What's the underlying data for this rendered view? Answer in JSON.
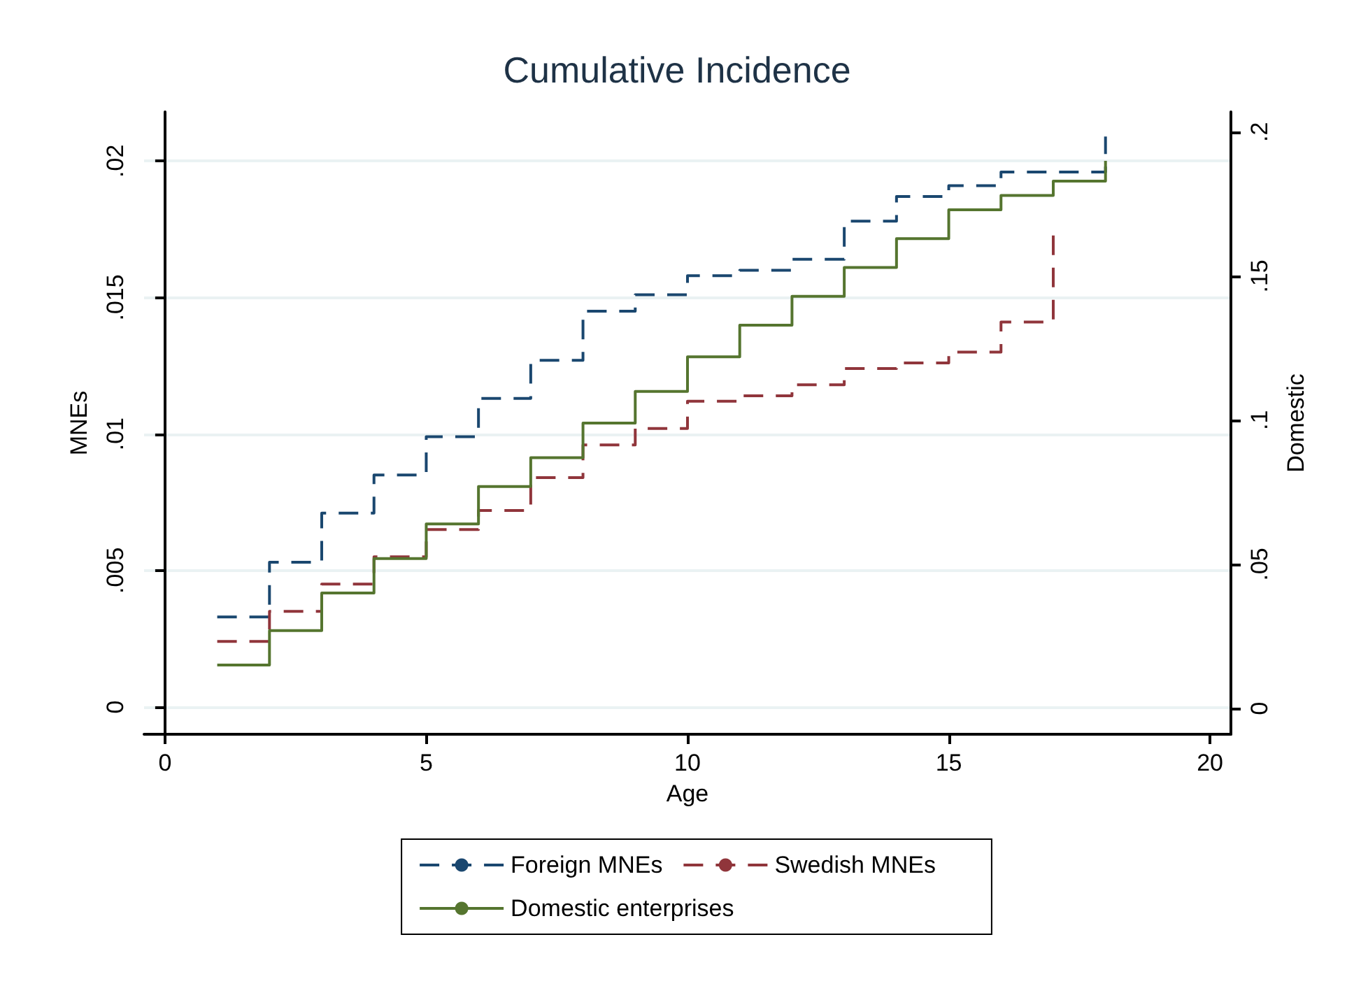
{
  "chart_data": {
    "type": "step",
    "title": "Cumulative Incidence",
    "xlabel": "Age",
    "ylabel": "MNEs",
    "y2label": "Domestic",
    "x": [
      1,
      2,
      3,
      4,
      5,
      6,
      7,
      8,
      9,
      10,
      11,
      12,
      13,
      14,
      15,
      16,
      17,
      18
    ],
    "series": [
      {
        "name": "Foreign MNEs",
        "color": "#1a476f",
        "line_style": "dashed",
        "values": [
          0.0033,
          0.0053,
          0.0071,
          0.0085,
          0.0099,
          0.0113,
          0.0127,
          0.0145,
          0.0151,
          0.0158,
          0.016,
          0.0164,
          0.0178,
          0.0187,
          0.0191,
          0.0196,
          0.0196,
          0.0209
        ]
      },
      {
        "name": "Swedish MNEs",
        "color": "#90353b",
        "line_style": "dashed",
        "x": [
          1,
          2,
          3,
          4,
          5,
          6,
          7,
          8,
          9,
          10,
          11,
          12,
          13,
          14,
          15,
          16,
          17
        ],
        "values": [
          0.0024,
          0.0035,
          0.0045,
          0.0055,
          0.0065,
          0.0072,
          0.0084,
          0.0096,
          0.0102,
          0.0112,
          0.0114,
          0.0118,
          0.0124,
          0.0126,
          0.013,
          0.0141,
          0.0174
        ]
      },
      {
        "name": "Domestic enterprises",
        "color": "#55752f",
        "line_style": "solid",
        "axis": "y2",
        "values": [
          0.015,
          0.027,
          0.04,
          0.052,
          0.064,
          0.077,
          0.087,
          0.099,
          0.11,
          0.122,
          0.133,
          0.143,
          0.153,
          0.163,
          0.173,
          0.178,
          0.183,
          0.19
        ]
      }
    ],
    "xlim": [
      -0.4,
      20.4
    ],
    "xticks": [
      0,
      5,
      10,
      15,
      20
    ],
    "ylim": [
      -0.001,
      0.0218
    ],
    "yticks": [
      {
        "value": 0,
        "label": "0"
      },
      {
        "value": 0.005,
        "label": ".005"
      },
      {
        "value": 0.01,
        "label": ".01"
      },
      {
        "value": 0.015,
        "label": ".015"
      },
      {
        "value": 0.02,
        "label": ".02"
      }
    ],
    "y2lim": [
      -0.009,
      0.207
    ],
    "y2ticks": [
      {
        "value": 0,
        "label": "0"
      },
      {
        "value": 0.05,
        "label": ".05"
      },
      {
        "value": 0.1,
        "label": ".1"
      },
      {
        "value": 0.15,
        "label": ".15"
      },
      {
        "value": 0.2,
        "label": ".2"
      }
    ],
    "grid": "y",
    "legend": "bottom",
    "marker": "none"
  }
}
